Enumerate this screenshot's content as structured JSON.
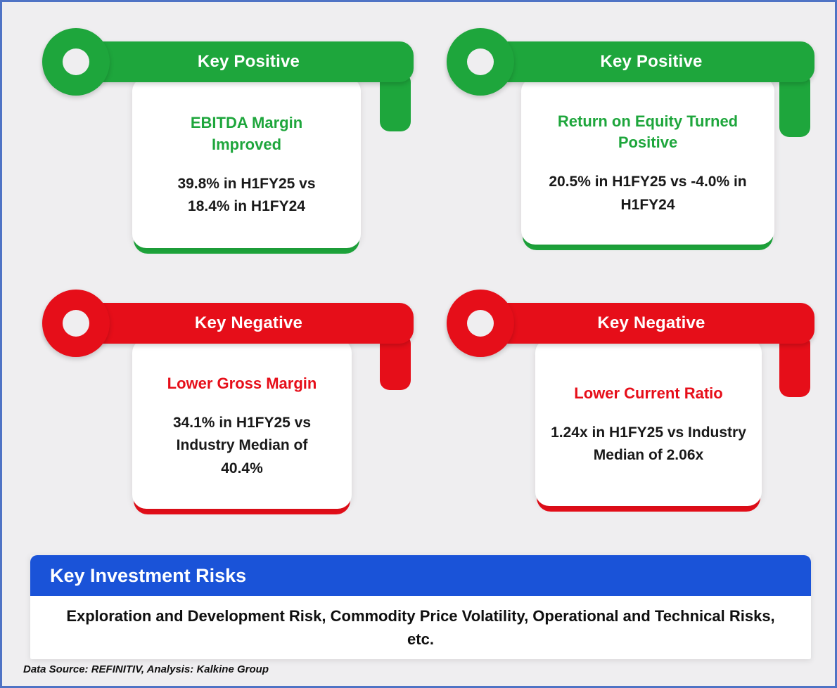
{
  "colors": {
    "positive": "#1ea63c",
    "negative": "#e60e19",
    "risk_header_bg": "#1a53d8",
    "page_bg": "#efeef0",
    "border": "#4f73c5"
  },
  "cards": [
    {
      "type": "positive",
      "badge": "Key Positive",
      "title": "EBITDA Margin Improved",
      "detail": "39.8% in H1FY25 vs 18.4% in H1FY24"
    },
    {
      "type": "positive",
      "badge": "Key Positive",
      "title": "Return on Equity Turned Positive",
      "detail": "20.5% in H1FY25 vs -4.0% in H1FY24"
    },
    {
      "type": "negative",
      "badge": "Key Negative",
      "title": "Lower Gross Margin",
      "detail": "34.1% in H1FY25 vs Industry Median of 40.4%"
    },
    {
      "type": "negative",
      "badge": "Key Negative",
      "title": "Lower Current Ratio",
      "detail": "1.24x in H1FY25 vs Industry Median of 2.06x"
    }
  ],
  "risks": {
    "header": "Key Investment Risks",
    "body": "Exploration and Development Risk, Commodity Price Volatility, Operational and Technical Risks,  etc."
  },
  "footer": {
    "source": "Data Source: REFINITIV, Analysis: Kalkine Group"
  }
}
